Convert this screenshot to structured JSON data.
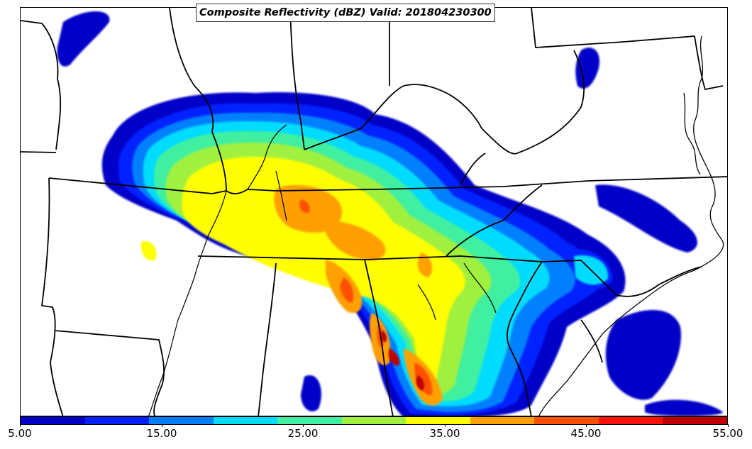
{
  "title": "Composite Reflectivity (dBZ) Valid: 201804230300",
  "colorbar": {
    "levels": [
      5,
      10,
      15,
      20,
      25,
      30,
      35,
      40,
      45,
      50,
      55
    ],
    "colors": [
      "#0000c8",
      "#0020ff",
      "#0080ff",
      "#00dcff",
      "#40f0a0",
      "#a0f040",
      "#ffff00",
      "#ffa000",
      "#ff5000",
      "#ff1000",
      "#c00000"
    ],
    "tick_labels": [
      "5.00",
      "15.00",
      "25.00",
      "35.00",
      "45.00",
      "55.00"
    ],
    "label_values": [
      5,
      15,
      25,
      35,
      45,
      55
    ]
  },
  "map": {
    "region": "South-central and southeastern United States",
    "background": "#ffffff",
    "boundary_color": "#000000"
  }
}
